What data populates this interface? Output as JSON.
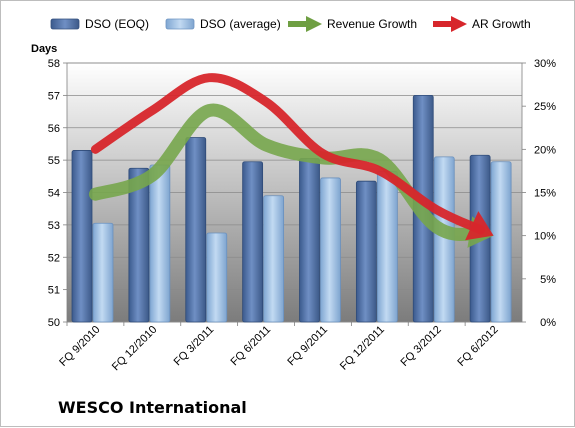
{
  "chart_data": {
    "type": "bar",
    "title": "",
    "ylabel": "Days",
    "categories": [
      "FQ 9/2010",
      "FQ 12/2010",
      "FQ 3/2011",
      "FQ 6/2011",
      "FQ 9/2011",
      "FQ 12/2011",
      "FQ 3/2012",
      "FQ 6/2012"
    ],
    "ylim": [
      50,
      58
    ],
    "y_ticks": [
      "50",
      "51",
      "52",
      "53",
      "54",
      "55",
      "56",
      "57",
      "58"
    ],
    "y2lim": [
      0,
      30
    ],
    "y2_ticks": [
      "0%",
      "5%",
      "10%",
      "15%",
      "20%",
      "25%",
      "30%"
    ],
    "grid": true,
    "legend_position": "top",
    "series": [
      {
        "name": "DSO (EOQ)",
        "axis": "left",
        "kind": "bar",
        "color": "#5574a8",
        "values": [
          55.3,
          54.75,
          55.7,
          54.95,
          55.05,
          54.35,
          57.0,
          55.15
        ]
      },
      {
        "name": "DSO (average)",
        "axis": "left",
        "kind": "bar",
        "color": "#9cc1e6",
        "values": [
          53.05,
          54.85,
          52.75,
          53.9,
          54.45,
          54.65,
          55.1,
          54.95
        ]
      },
      {
        "name": "Revenue Growth",
        "axis": "right",
        "kind": "arrow-line",
        "color": "#77a64d",
        "values": [
          14.8,
          17.0,
          24.5,
          20.5,
          19.0,
          18.8,
          11.0,
          10.0
        ]
      },
      {
        "name": "AR Growth",
        "axis": "right",
        "kind": "arrow-line",
        "color": "#d7262b",
        "values": [
          20.0,
          24.5,
          28.3,
          25.5,
          19.5,
          17.5,
          13.0,
          10.0
        ]
      }
    ]
  },
  "footer": {
    "company": "WESCO International"
  }
}
